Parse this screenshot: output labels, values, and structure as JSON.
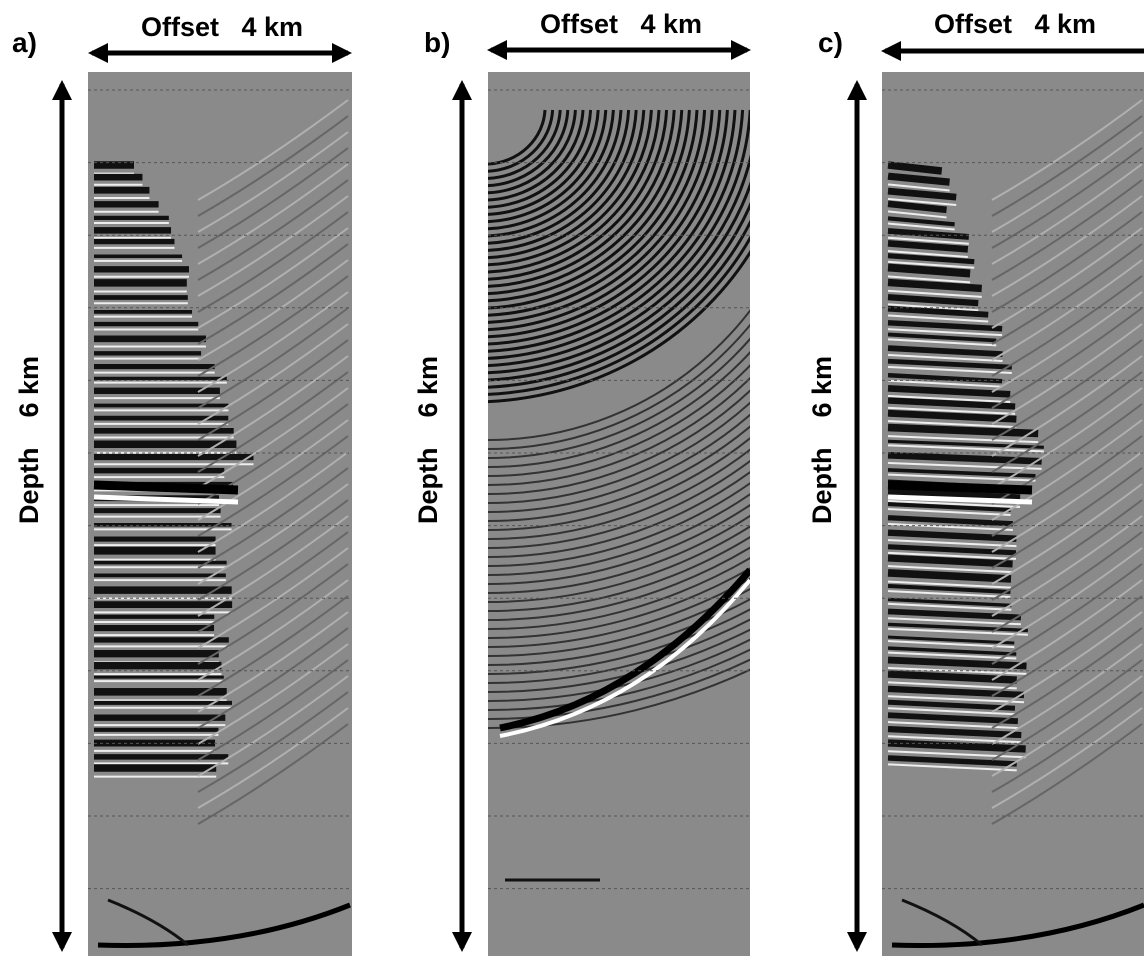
{
  "panels": [
    {
      "label": "a)",
      "offset_label": "Offset   4 km",
      "depth_label": "Depth    6 km"
    },
    {
      "label": "b)",
      "offset_label": "Offset   4 km",
      "depth_label": "Depth    6 km"
    },
    {
      "label": "c)",
      "offset_label": "Offset   4 km",
      "depth_label": "Depth    6 km"
    }
  ]
}
